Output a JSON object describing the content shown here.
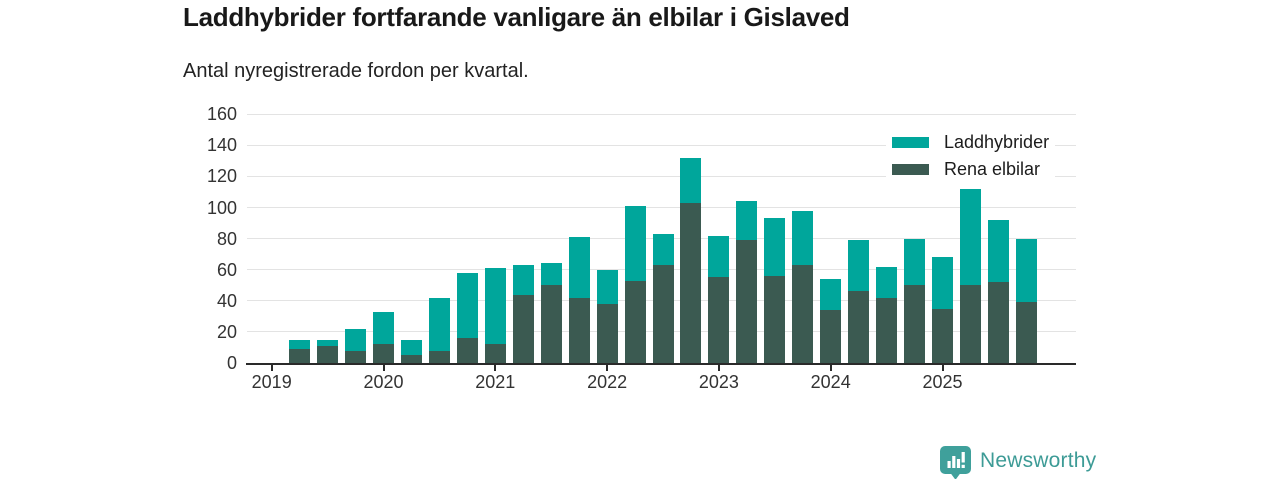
{
  "header": {
    "title": "Laddhybrider fortfarande vanligare än elbilar i Gislaved",
    "subtitle": "Antal nyregistrerade fordon per kvartal."
  },
  "legend": {
    "items": [
      {
        "label": "Laddhybrider",
        "color": "#00a69b"
      },
      {
        "label": "Rena elbilar",
        "color": "#3b5a51"
      }
    ]
  },
  "footer": {
    "brand": "Newsworthy",
    "logo_icon": "bar-chart-speech-pin",
    "logo_color": "#3fa09b",
    "text_color": "#3d9b96"
  },
  "colors": {
    "laddhybrider": "#00a69b",
    "rena_elbilar": "#3b5a51",
    "gridline": "#e3e3e3",
    "axis": "#2a2a2a",
    "tick_text": "#333333"
  },
  "chart_data": {
    "type": "bar",
    "stacked": true,
    "title": "Laddhybrider fortfarande vanligare än elbilar i Gislaved",
    "subtitle": "Antal nyregistrerade fordon per kvartal.",
    "categories": [
      "2019 Q2",
      "2019 Q3",
      "2019 Q4",
      "2020 Q1",
      "2020 Q2",
      "2020 Q3",
      "2020 Q4",
      "2021 Q1",
      "2021 Q2",
      "2021 Q3",
      "2021 Q4",
      "2022 Q1",
      "2022 Q2",
      "2022 Q3",
      "2022 Q4",
      "2023 Q1",
      "2023 Q2",
      "2023 Q3",
      "2023 Q4",
      "2024 Q1",
      "2024 Q2",
      "2024 Q3",
      "2024 Q4",
      "2025 Q1",
      "2025 Q2",
      "2025 Q3",
      "2025 Q4"
    ],
    "series": [
      {
        "name": "Rena elbilar",
        "color": "#3b5a51",
        "values": [
          9,
          11,
          8,
          12,
          5,
          8,
          16,
          12,
          44,
          50,
          42,
          38,
          53,
          63,
          103,
          55,
          79,
          56,
          63,
          34,
          46,
          42,
          50,
          35,
          50,
          52,
          39
        ]
      },
      {
        "name": "Laddhybrider",
        "color": "#00a69b",
        "values": [
          6,
          4,
          14,
          21,
          10,
          34,
          42,
          49,
          19,
          14,
          39,
          22,
          48,
          20,
          29,
          27,
          25,
          37,
          35,
          20,
          33,
          20,
          30,
          33,
          62,
          40,
          41
        ]
      }
    ],
    "totals": [
      15,
      15,
      22,
      33,
      15,
      42,
      58,
      61,
      63,
      64,
      81,
      60,
      101,
      83,
      132,
      82,
      104,
      93,
      98,
      54,
      79,
      62,
      80,
      68,
      112,
      92,
      80
    ],
    "x_tick_labels": [
      "2019",
      "2020",
      "2021",
      "2022",
      "2023",
      "2024",
      "2025"
    ],
    "y_ticks": [
      0,
      20,
      40,
      60,
      80,
      100,
      120,
      140,
      160
    ],
    "ylim": [
      0,
      160
    ],
    "grid": true,
    "legend_position": "top-right"
  }
}
